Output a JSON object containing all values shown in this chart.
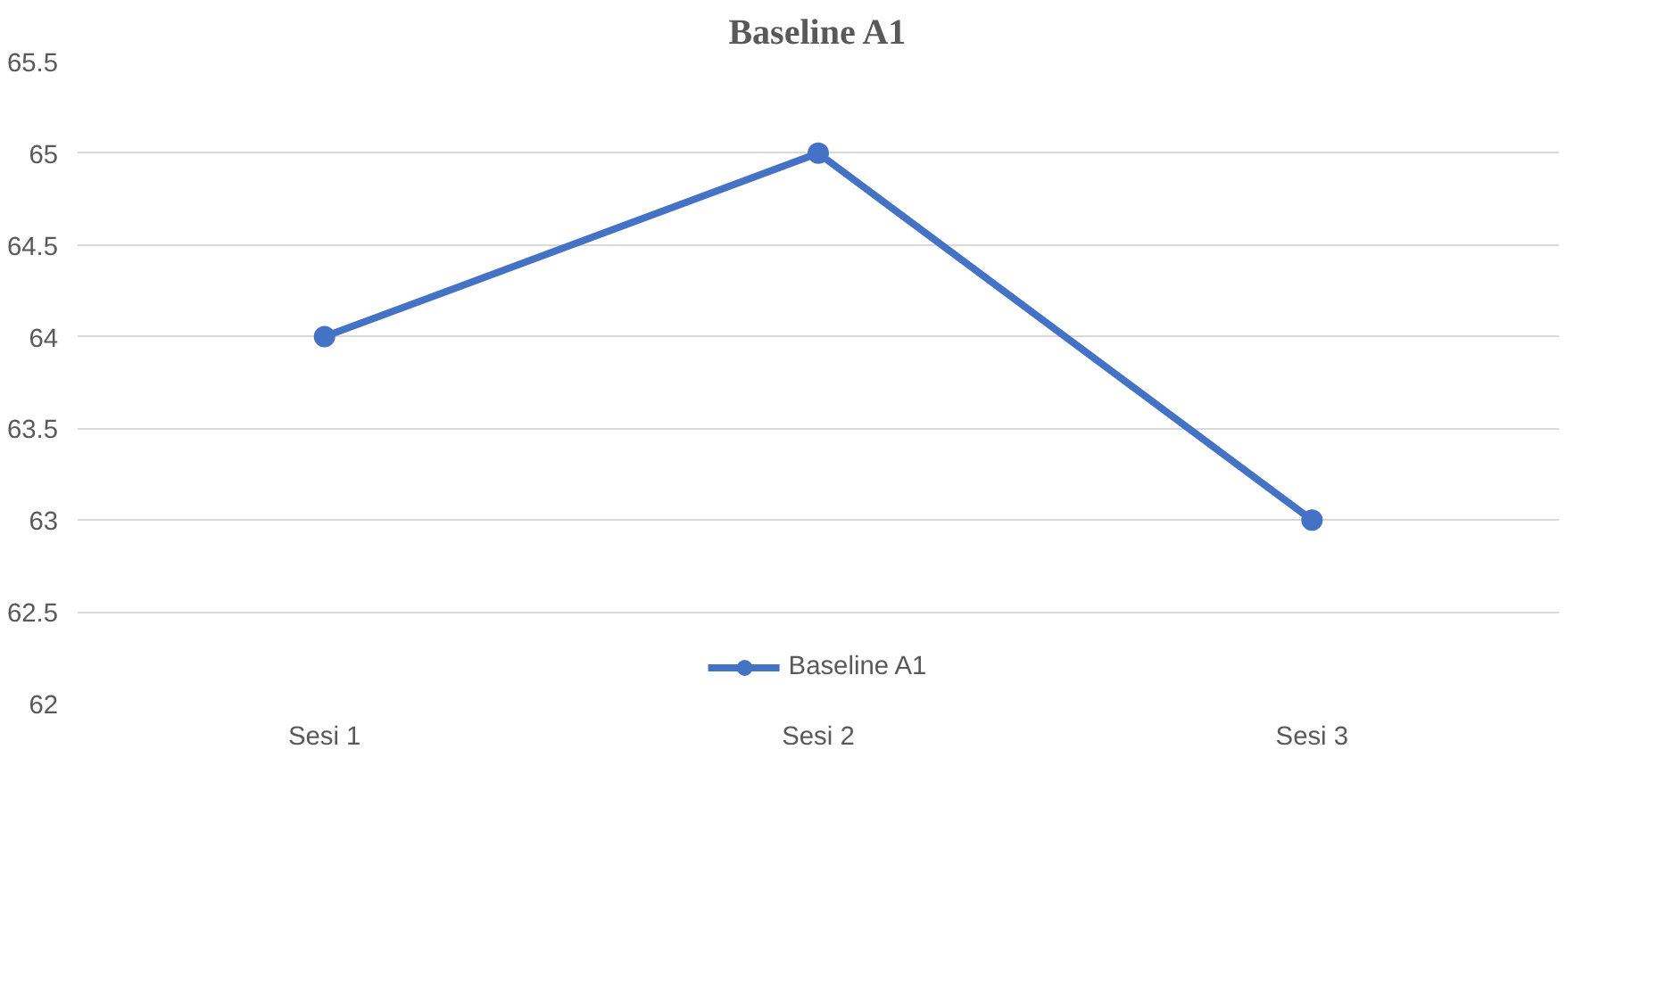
{
  "chart_data": {
    "type": "line",
    "title": "Baseline A1",
    "categories": [
      "Sesi 1",
      "Sesi 2",
      "Sesi 3"
    ],
    "series": [
      {
        "name": "Baseline A1",
        "color": "#4472c4",
        "values": [
          64,
          65,
          63
        ]
      }
    ],
    "ylim": [
      62,
      65.5
    ],
    "yticks": [
      62,
      62.5,
      63,
      63.5,
      64,
      64.5,
      65,
      65.5
    ],
    "grid": "y",
    "legend": "bottom",
    "marker": "circle",
    "line_style": "solid"
  }
}
